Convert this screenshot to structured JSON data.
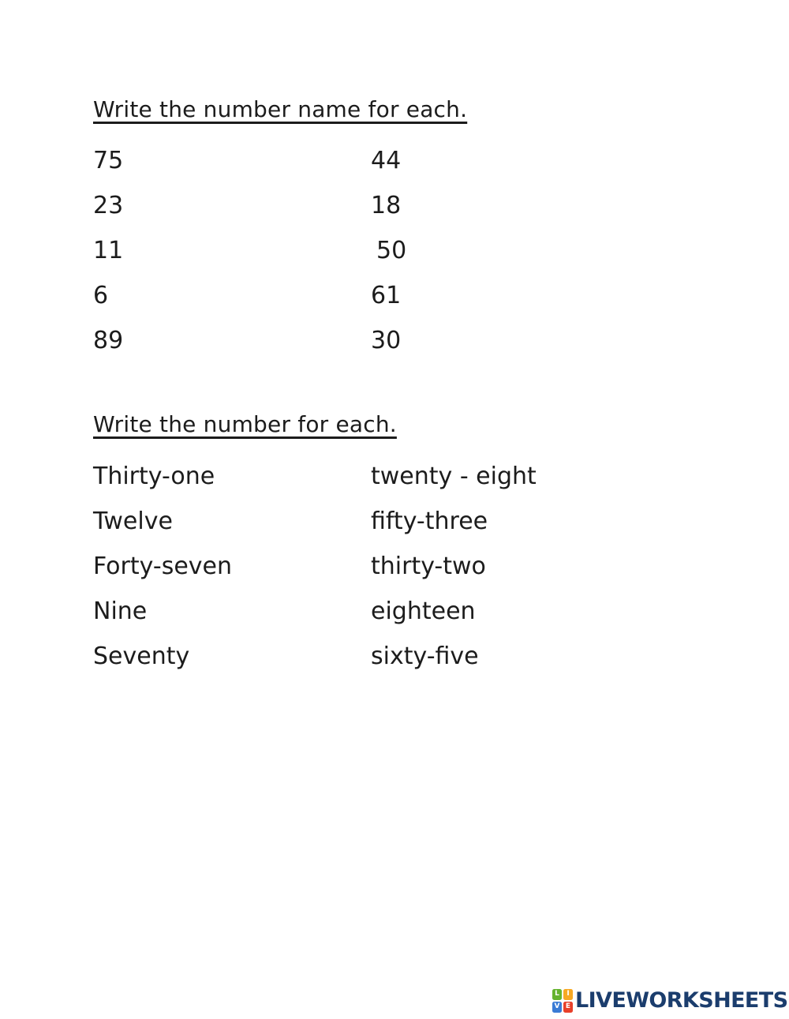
{
  "page": {
    "background": "#ffffff",
    "text_color": "#1c1c1c"
  },
  "section1": {
    "heading": "Write the number name for each.",
    "rows": [
      {
        "left": "75",
        "right": "44"
      },
      {
        "left": "23",
        "right": "18"
      },
      {
        "left": "11",
        "right": "50"
      },
      {
        "left": "6",
        "right": "61"
      },
      {
        "left": "89",
        "right": "30"
      }
    ]
  },
  "section2": {
    "heading": "Write the number for each.",
    "rows": [
      {
        "left": "Thirty-one",
        "right": "twenty - eight"
      },
      {
        "left": "Twelve",
        "right": "fifty-three"
      },
      {
        "left": "Forty-seven",
        "right": "thirty-two"
      },
      {
        "left": "Nine",
        "right": "eighteen"
      },
      {
        "left": "Seventy",
        "right": "sixty-five"
      }
    ]
  },
  "footer": {
    "brand": "LIVEWORKSHEETS",
    "brand_color": "#1b3d6d",
    "logo_tiles": [
      {
        "letter": "L",
        "color": "#65b32e"
      },
      {
        "letter": "I",
        "color": "#f7a823"
      },
      {
        "letter": "V",
        "color": "#3a7bd5"
      },
      {
        "letter": "E",
        "color": "#e8402a"
      }
    ]
  }
}
